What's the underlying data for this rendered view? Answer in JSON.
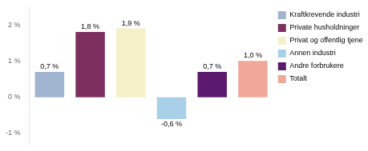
{
  "chart_data": {
    "type": "bar",
    "categories": [
      "Kraftkrevende industri",
      "Private husholdninger",
      "Privat og offentlig tjenestetying",
      "Annen industri",
      "Andre forbrukere",
      "Totalt"
    ],
    "values": [
      0.7,
      1.8,
      1.9,
      -0.6,
      0.7,
      1.0
    ],
    "value_labels": [
      "0,7 %",
      "1,8 %",
      "1,9 %",
      "-0,6 %",
      "0,7 %",
      "1,0 %"
    ],
    "colors": [
      "#a0b4d0",
      "#7d3060",
      "#f5f0c8",
      "#a8d0e8",
      "#5c1a6e",
      "#f0a898"
    ],
    "ylim": [
      -1.3,
      2.5
    ],
    "yticks": [
      {
        "value": -1,
        "label": "-1 %"
      },
      {
        "value": 0,
        "label": "0 %"
      },
      {
        "value": 1,
        "label": "1 %"
      },
      {
        "value": 2,
        "label": "2 %"
      }
    ],
    "grid": false,
    "legend": "right",
    "data_labels": true,
    "tick_labels": "y"
  }
}
